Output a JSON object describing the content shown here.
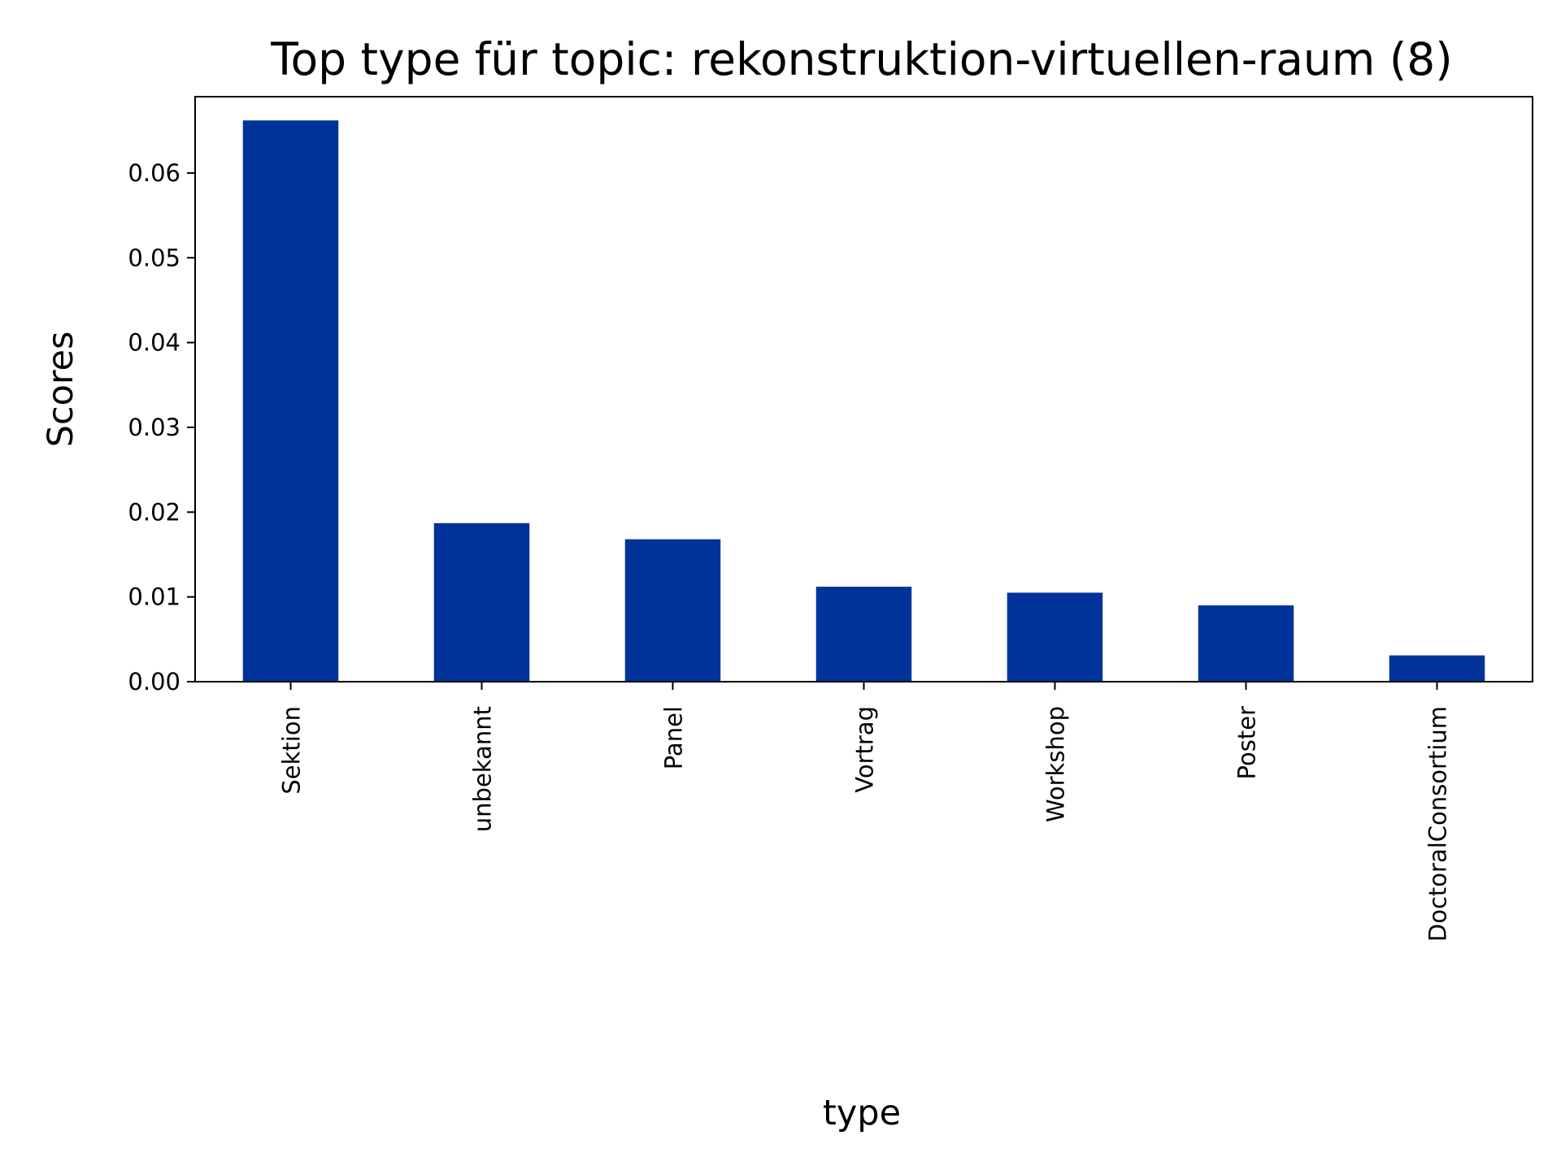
{
  "chart_data": {
    "type": "bar",
    "title": "Top type für topic: rekonstruktion-virtuellen-raum (8)",
    "xlabel": "type",
    "ylabel": "Scores",
    "categories": [
      "Sektion",
      "unbekannt",
      "Panel",
      "Vortrag",
      "Workshop",
      "Poster",
      "DoctoralConsortium"
    ],
    "values": [
      0.0662,
      0.0187,
      0.0168,
      0.0112,
      0.0105,
      0.009,
      0.0031
    ],
    "ylim": [
      0,
      0.069
    ],
    "yticks": [
      0.0,
      0.01,
      0.02,
      0.03,
      0.04,
      0.05,
      0.06
    ],
    "ytick_labels": [
      "0.00",
      "0.01",
      "0.02",
      "0.03",
      "0.04",
      "0.05",
      "0.06"
    ],
    "bar_color": "#003399",
    "grid": false
  }
}
